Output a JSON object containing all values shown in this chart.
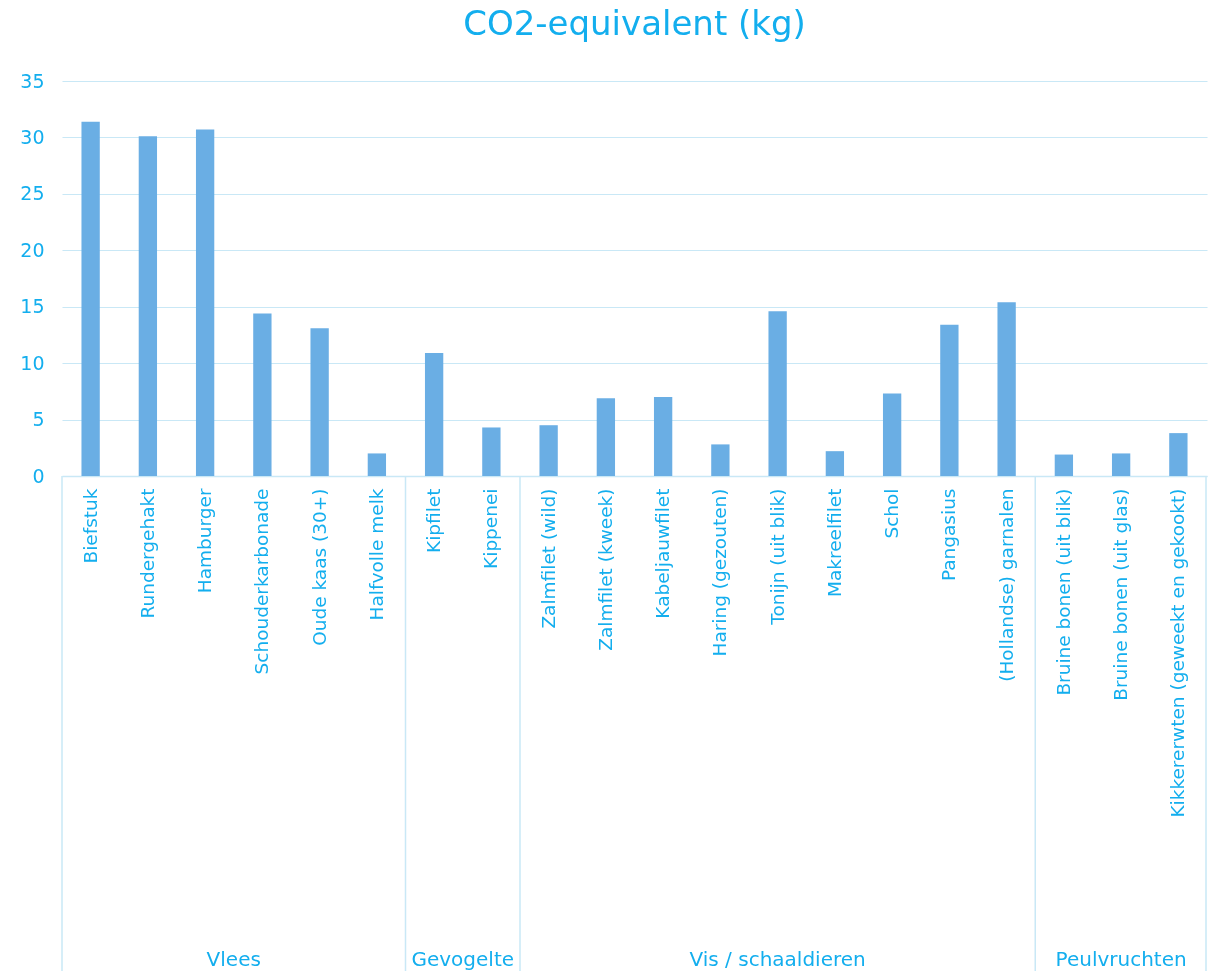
{
  "chart_data": {
    "type": "bar",
    "title": "CO2-equivalent (kg)",
    "categories": [
      "Biefstuk",
      "Rundergehakt",
      "Hamburger",
      "Schouderkarbonade",
      "Oude kaas (30+)",
      "Halfvolle melk",
      "Kipfilet",
      "Kippenei",
      "Zalmfilet (wild)",
      "Zalmfilet (kweek)",
      "Kabeljauwfilet",
      "Haring (gezouten)",
      "Tonijn (uit blik)",
      "Makreelfilet",
      "Schol",
      "Pangasius",
      "(Hollandse) garnalen",
      "Bruine bonen (uit blik)",
      "Bruine bonen (uit glas)",
      "Kikkererwten (geweekt en gekookt)"
    ],
    "values": [
      31.4,
      30.1,
      30.7,
      14.4,
      13.1,
      2.0,
      10.9,
      4.3,
      4.5,
      6.9,
      7.0,
      2.8,
      14.6,
      2.2,
      7.3,
      13.4,
      15.4,
      1.9,
      2.0,
      3.8
    ],
    "color": "#6aaee4",
    "ylim": [
      0,
      35
    ],
    "yticks": [
      0,
      5,
      10,
      15,
      20,
      25,
      30,
      35
    ],
    "grid": "y",
    "annotations": [
      "Vlees",
      "Gevogelte",
      "Vis / schaaldieren",
      "Peulvruchten"
    ]
  }
}
